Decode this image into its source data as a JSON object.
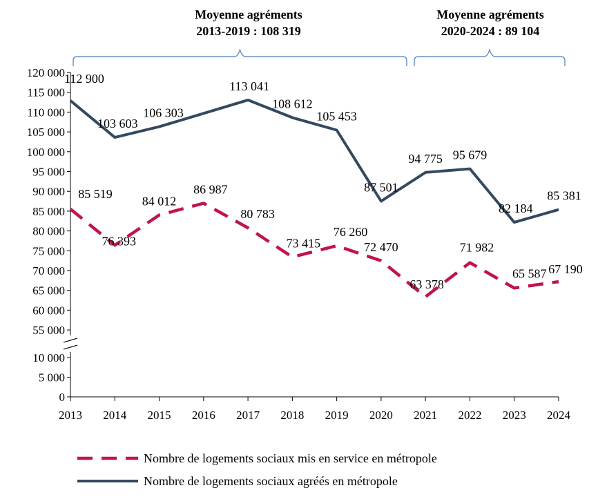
{
  "annotations": [
    {
      "line1": "Moyenne agréments",
      "line2": "2013-2019 :  108 319"
    },
    {
      "line1": "Moyenne agréments",
      "line2": "2020-2024 : 89 104"
    }
  ],
  "chart_data": {
    "type": "line",
    "x": [
      2013,
      2014,
      2015,
      2016,
      2017,
      2018,
      2019,
      2020,
      2021,
      2022,
      2023,
      2024
    ],
    "y_ticks_upper": [
      "120 000",
      "115 000",
      "110 000",
      "105 000",
      "100 000",
      "95 000",
      "90 000",
      "85 000",
      "80 000",
      "75 000",
      "70 000",
      "65 000",
      "60 000",
      "55 000"
    ],
    "y_ticks_lower": [
      "10 000",
      "5 000",
      "0"
    ],
    "y_axis_break": true,
    "grid": false,
    "legend_position": "bottom",
    "series": [
      {
        "name": "Nombre de logements sociaux agréés en métropole",
        "color": "#34495e",
        "style": "solid",
        "values": [
          112900,
          103603,
          106303,
          null,
          113041,
          108612,
          105453,
          87501,
          94775,
          95679,
          82184,
          85381
        ],
        "labels": [
          "112 900",
          "103 603",
          "106 303",
          "",
          "113 041",
          "108 612",
          "105 453",
          "87 501",
          "94 775",
          "95 679",
          "82 184",
          "85 381"
        ]
      },
      {
        "name": "Nombre de logements sociaux mis en service en métropole",
        "color": "#c0144b",
        "style": "dashed",
        "values": [
          85519,
          76393,
          84012,
          86987,
          80783,
          73415,
          76260,
          72470,
          63378,
          71982,
          65587,
          67190
        ],
        "labels": [
          "85 519",
          "76 393",
          "84 012",
          "86 987",
          "80 783",
          "73 415",
          "76 260",
          "72 470",
          "63 378",
          "71 982",
          "65 587",
          "67 190"
        ]
      }
    ]
  }
}
